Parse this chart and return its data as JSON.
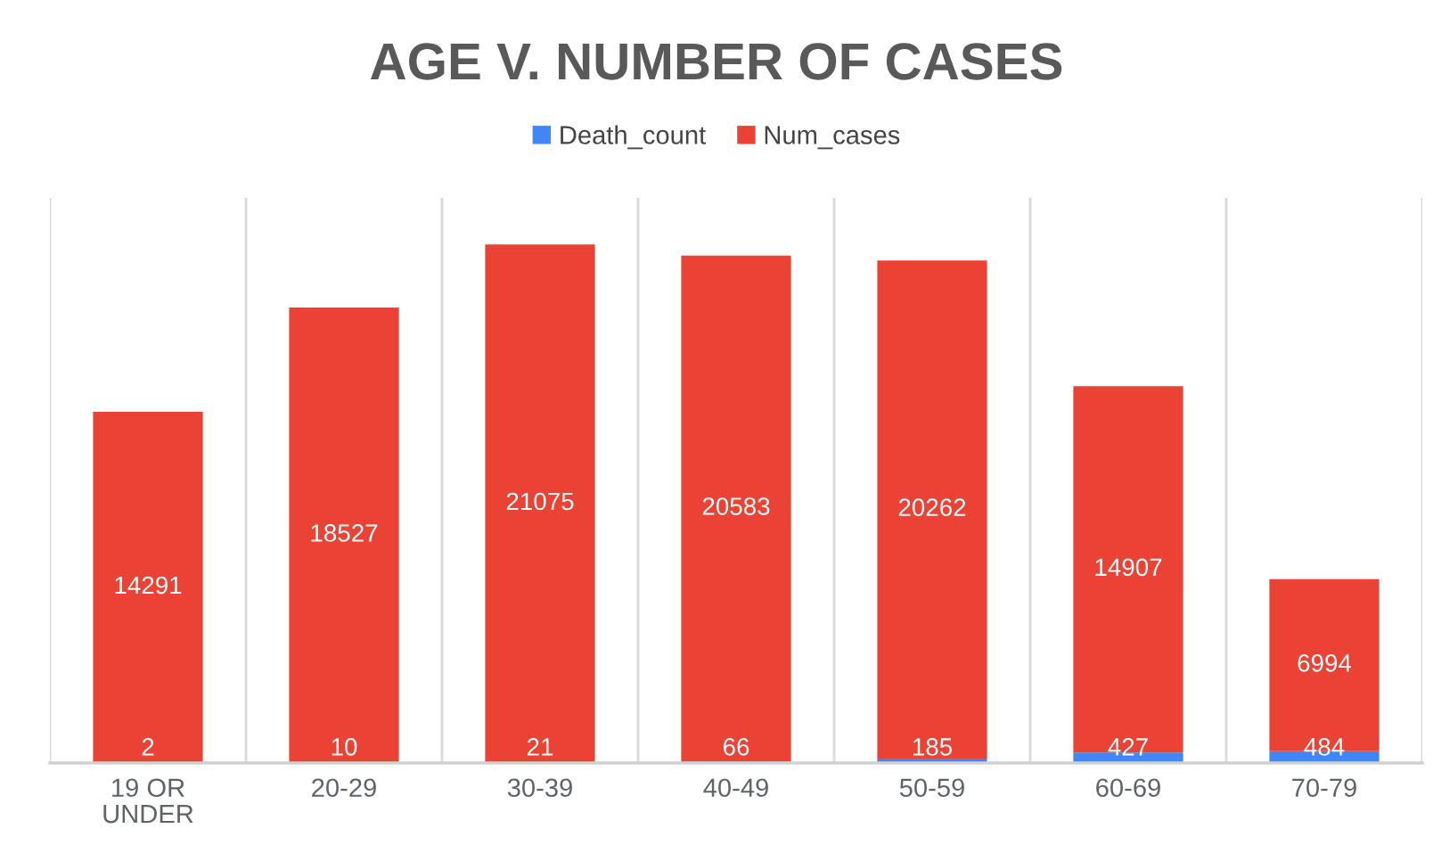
{
  "chart_data": {
    "type": "bar",
    "title": "AGE V. NUMBER OF CASES",
    "categories": [
      "19 OR UNDER",
      "20-29",
      "30-39",
      "40-49",
      "50-59",
      "60-69",
      "70-79"
    ],
    "stacked": true,
    "series": [
      {
        "name": "Death_count",
        "color": "#4285f4",
        "values": [
          2,
          10,
          21,
          66,
          185,
          427,
          484
        ]
      },
      {
        "name": "Num_cases",
        "color": "#ea4335",
        "values": [
          14291,
          18527,
          21075,
          20583,
          20262,
          14907,
          6994
        ]
      }
    ],
    "data_labels": true,
    "legend": "top",
    "grid": "x",
    "tick_labels": "x"
  }
}
